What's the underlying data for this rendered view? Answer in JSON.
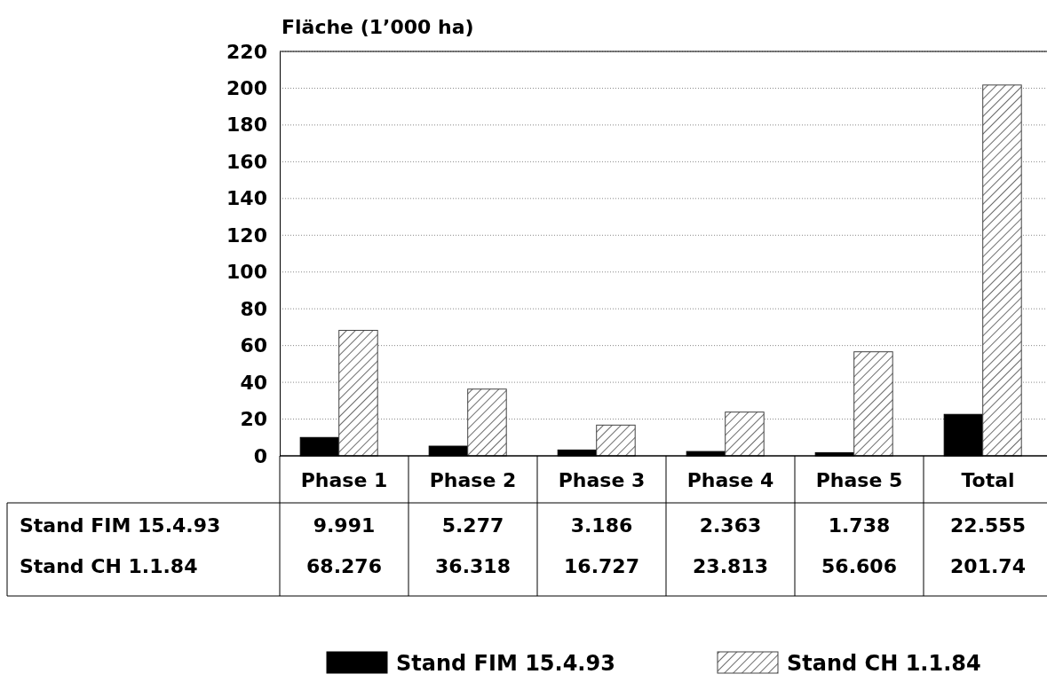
{
  "chart_data": {
    "type": "bar",
    "ylabel": "Fläche (1’000 ha)",
    "categories": [
      "Phase 1",
      "Phase 2",
      "Phase 3",
      "Phase 4",
      "Phase 5",
      "Total"
    ],
    "series": [
      {
        "name": "Stand FIM 15.4.93",
        "color": "#000000",
        "values": [
          9.991,
          5.277,
          3.186,
          2.363,
          1.738,
          22.555
        ]
      },
      {
        "name": "Stand CH 1.1.84",
        "color": "#444444",
        "values": [
          68.276,
          36.318,
          16.727,
          23.813,
          56.606,
          201.74
        ]
      }
    ],
    "ylim": [
      0,
      220
    ],
    "yticks": [
      0,
      20,
      40,
      60,
      80,
      100,
      120,
      140,
      160,
      180,
      200,
      220
    ],
    "grid": "y",
    "legend": "bottom",
    "data_labels": true
  }
}
